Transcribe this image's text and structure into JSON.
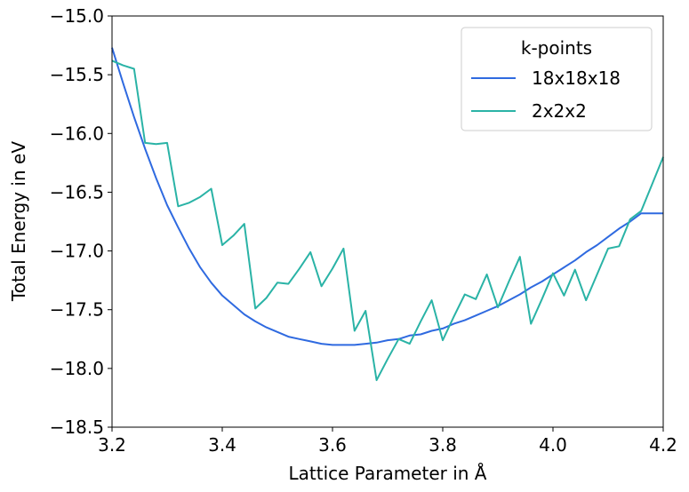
{
  "chart_data": {
    "type": "line",
    "title": "",
    "xlabel": "Lattice Parameter in Å",
    "ylabel": "Total Energy in eV",
    "xlim": [
      3.2,
      4.2
    ],
    "ylim": [
      -18.5,
      -15.0
    ],
    "xticks": [
      3.2,
      3.4,
      3.6,
      3.8,
      4.0,
      4.2
    ],
    "xtick_labels": [
      "3.2",
      "3.4",
      "3.6",
      "3.8",
      "4.0",
      "4.2"
    ],
    "yticks": [
      -18.5,
      -18.0,
      -17.5,
      -17.0,
      -16.5,
      -16.0,
      -15.5,
      -15.0
    ],
    "ytick_labels": [
      "−18.5",
      "−18.0",
      "−17.5",
      "−17.0",
      "−16.5",
      "−16.0",
      "−15.5",
      "−15.0"
    ],
    "grid": false,
    "legend": {
      "title": "k-points",
      "placement": "upper right"
    },
    "series": [
      {
        "name": "18x18x18",
        "color": "#2f6ae0",
        "x": [
          3.2,
          3.22,
          3.24,
          3.26,
          3.28,
          3.3,
          3.32,
          3.34,
          3.36,
          3.38,
          3.4,
          3.42,
          3.44,
          3.46,
          3.48,
          3.5,
          3.52,
          3.54,
          3.56,
          3.58,
          3.6,
          3.62,
          3.64,
          3.66,
          3.68,
          3.7,
          3.72,
          3.74,
          3.76,
          3.78,
          3.8,
          3.82,
          3.84,
          3.86,
          3.88,
          3.9,
          3.92,
          3.94,
          3.96,
          3.98,
          4.0,
          4.02,
          4.04,
          4.06,
          4.08,
          4.1,
          4.12,
          4.14,
          4.16,
          4.18,
          4.2
        ],
        "y": [
          -15.27,
          -15.57,
          -15.86,
          -16.13,
          -16.38,
          -16.61,
          -16.8,
          -16.98,
          -17.14,
          -17.27,
          -17.38,
          -17.46,
          -17.54,
          -17.6,
          -17.65,
          -17.69,
          -17.73,
          -17.75,
          -17.77,
          -17.79,
          -17.8,
          -17.8,
          -17.8,
          -17.79,
          -17.78,
          -17.76,
          -17.75,
          -17.72,
          -17.71,
          -17.68,
          -17.66,
          -17.62,
          -17.59,
          -17.55,
          -17.51,
          -17.47,
          -17.42,
          -17.37,
          -17.31,
          -17.26,
          -17.2,
          -17.14,
          -17.08,
          -17.01,
          -16.95,
          -16.88,
          -16.81,
          -16.75,
          -16.68,
          -16.68,
          -16.68
        ]
      },
      {
        "name": "2x2x2",
        "color": "#2ab3a6",
        "x": [
          3.2,
          3.22,
          3.24,
          3.26,
          3.28,
          3.3,
          3.32,
          3.34,
          3.36,
          3.38,
          3.4,
          3.42,
          3.44,
          3.46,
          3.48,
          3.5,
          3.52,
          3.54,
          3.56,
          3.58,
          3.6,
          3.62,
          3.64,
          3.66,
          3.68,
          3.7,
          3.72,
          3.74,
          3.76,
          3.78,
          3.8,
          3.82,
          3.84,
          3.86,
          3.88,
          3.9,
          3.92,
          3.94,
          3.96,
          3.98,
          4.0,
          4.02,
          4.04,
          4.06,
          4.08,
          4.1,
          4.12,
          4.14,
          4.16,
          4.18,
          4.2
        ],
        "y": [
          -15.38,
          -15.42,
          -15.45,
          -16.08,
          -16.09,
          -16.08,
          -16.62,
          -16.59,
          -16.54,
          -16.47,
          -16.95,
          -16.87,
          -16.77,
          -17.49,
          -17.4,
          -17.27,
          -17.28,
          -17.15,
          -17.01,
          -17.3,
          -17.15,
          -16.98,
          -17.68,
          -17.51,
          -18.1,
          -17.92,
          -17.75,
          -17.79,
          -17.6,
          -17.42,
          -17.76,
          -17.56,
          -17.37,
          -17.41,
          -17.2,
          -17.48,
          -17.26,
          -17.05,
          -17.62,
          -17.41,
          -17.19,
          -17.38,
          -17.16,
          -17.42,
          -17.2,
          -16.98,
          -16.96,
          -16.73,
          -16.66,
          -16.43,
          -16.2
        ]
      }
    ]
  }
}
